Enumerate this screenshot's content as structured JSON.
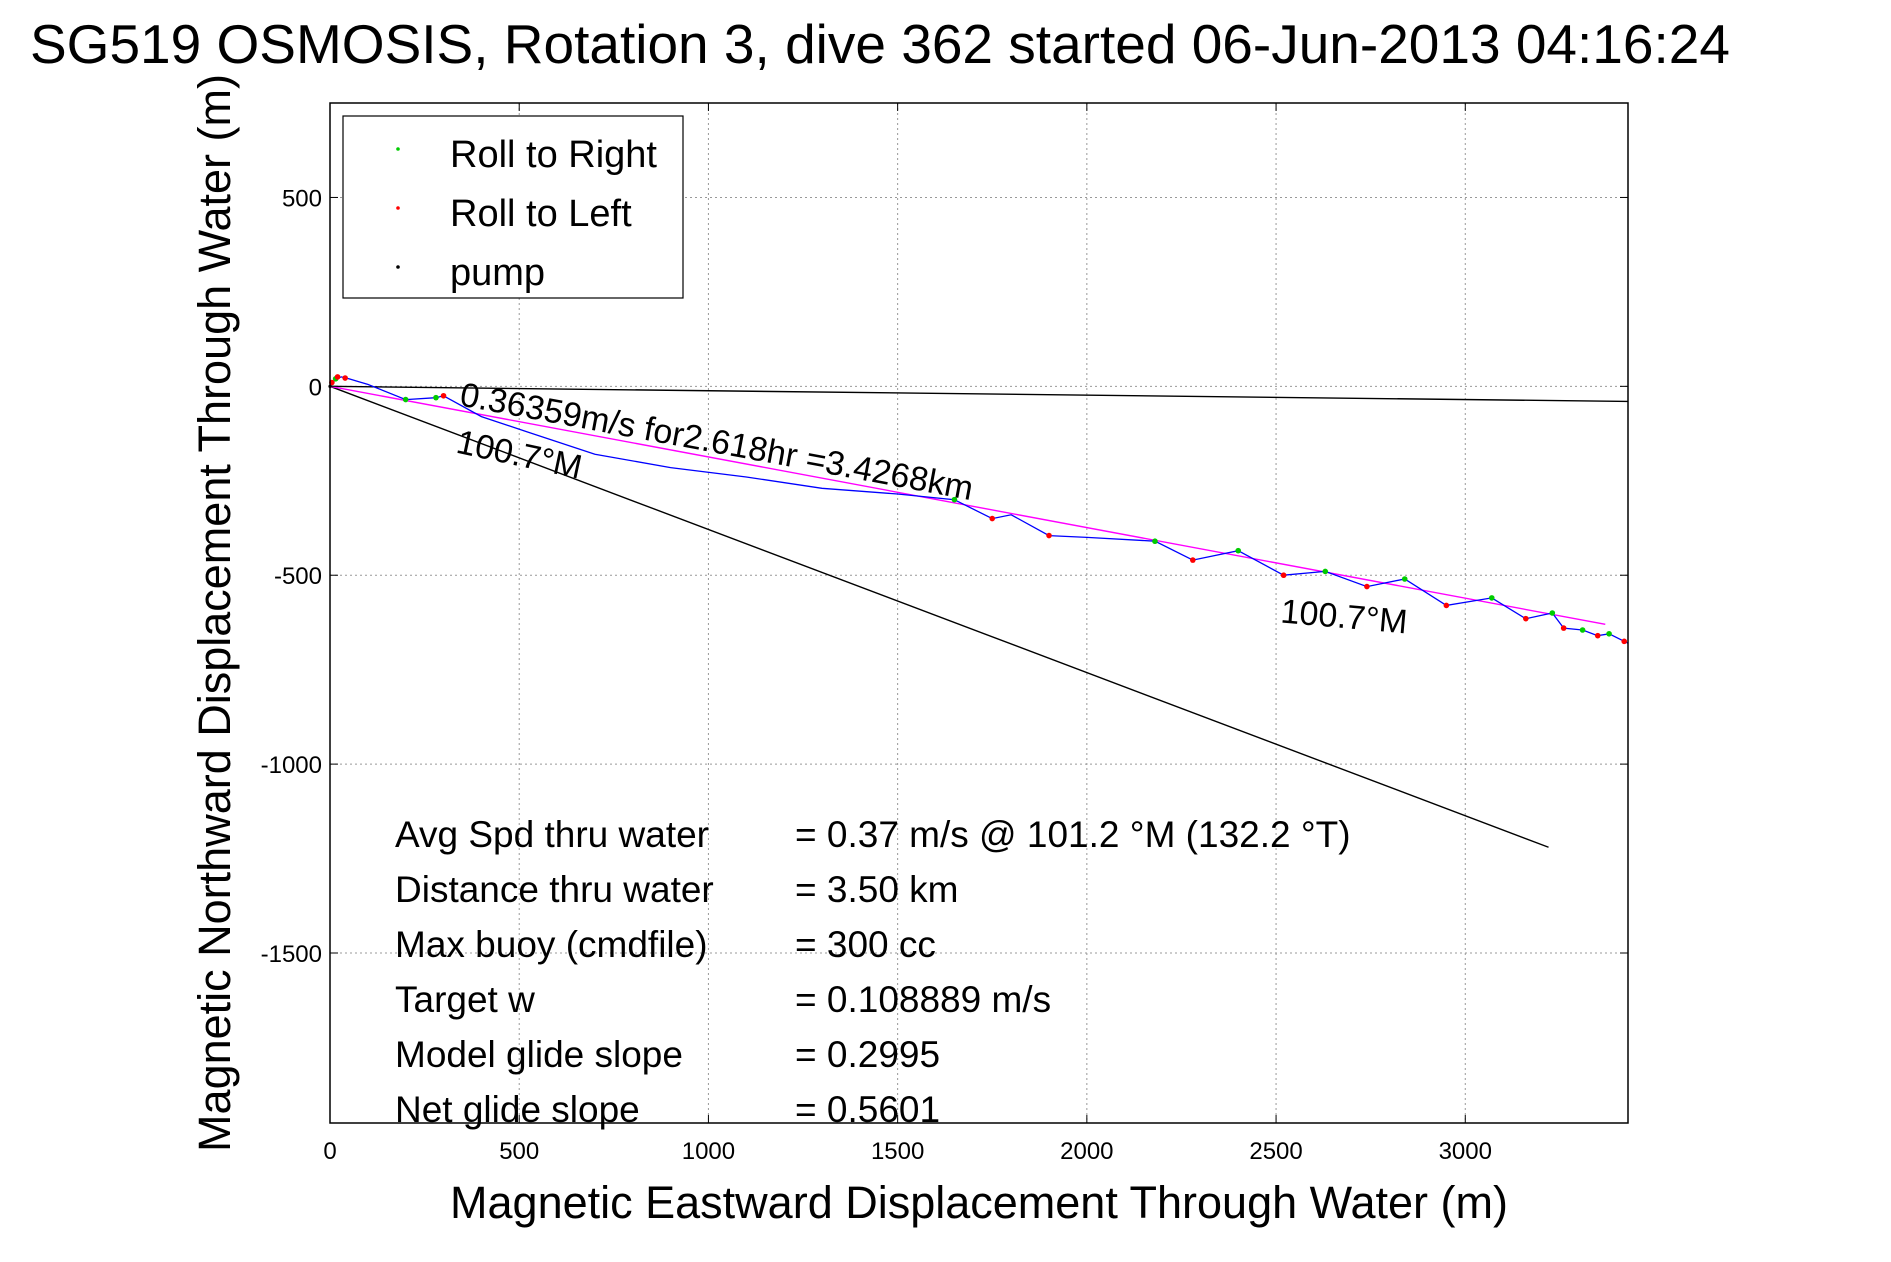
{
  "chart_data": {
    "type": "scatter",
    "title": "SG519 OSMOSIS, Rotation 3, dive 362 started 06-Jun-2013 04:16:24",
    "xlabel": "Magnetic Eastward Displacement Through Water (m)",
    "ylabel": "Magnetic Northward Displacement Through Water (m)",
    "xlim": [
      0,
      3430
    ],
    "ylim": [
      -1950,
      750
    ],
    "x_ticks": [
      0,
      500,
      1000,
      1500,
      2000,
      2500,
      3000
    ],
    "y_ticks": [
      500,
      0,
      -500,
      -1000,
      -1500
    ],
    "grid": true,
    "legend_position": "top-left",
    "legend": [
      {
        "label": "Roll to Right",
        "color": "#00cc00"
      },
      {
        "label": "Roll to Left",
        "color": "#ff0000"
      },
      {
        "label": "pump",
        "color": "#000000"
      }
    ],
    "track": {
      "color": "#0000ff",
      "points": [
        [
          0,
          0
        ],
        [
          15,
          20
        ],
        [
          30,
          25
        ],
        [
          50,
          20
        ],
        [
          100,
          5
        ],
        [
          200,
          -35
        ],
        [
          280,
          -30
        ],
        [
          300,
          -25
        ],
        [
          400,
          -80
        ],
        [
          520,
          -120
        ],
        [
          700,
          -180
        ],
        [
          900,
          -215
        ],
        [
          1100,
          -240
        ],
        [
          1300,
          -270
        ],
        [
          1500,
          -285
        ],
        [
          1650,
          -300
        ],
        [
          1750,
          -350
        ],
        [
          1800,
          -340
        ],
        [
          1900,
          -395
        ],
        [
          2000,
          -400
        ],
        [
          2180,
          -410
        ],
        [
          2280,
          -460
        ],
        [
          2400,
          -435
        ],
        [
          2520,
          -500
        ],
        [
          2630,
          -490
        ],
        [
          2740,
          -530
        ],
        [
          2840,
          -510
        ],
        [
          2950,
          -580
        ],
        [
          3070,
          -560
        ],
        [
          3160,
          -615
        ],
        [
          3230,
          -600
        ],
        [
          3260,
          -640
        ],
        [
          3310,
          -645
        ],
        [
          3350,
          -660
        ],
        [
          3380,
          -655
        ],
        [
          3420,
          -675
        ],
        [
          3430,
          -680
        ]
      ]
    },
    "roll_right_points": [
      [
        15,
        20
      ],
      [
        200,
        -35
      ],
      [
        280,
        -30
      ],
      [
        1650,
        -300
      ],
      [
        2180,
        -410
      ],
      [
        2400,
        -435
      ],
      [
        2630,
        -490
      ],
      [
        2840,
        -510
      ],
      [
        3070,
        -560
      ],
      [
        3230,
        -600
      ],
      [
        3310,
        -645
      ],
      [
        3380,
        -655
      ]
    ],
    "roll_left_points": [
      [
        5,
        10
      ],
      [
        20,
        25
      ],
      [
        40,
        22
      ],
      [
        300,
        -25
      ],
      [
        1750,
        -350
      ],
      [
        1900,
        -395
      ],
      [
        2280,
        -460
      ],
      [
        2520,
        -500
      ],
      [
        2740,
        -530
      ],
      [
        2950,
        -580
      ],
      [
        3160,
        -615
      ],
      [
        3260,
        -640
      ],
      [
        3350,
        -660
      ],
      [
        3420,
        -675
      ]
    ],
    "pump_points": [
      [
        0,
        0
      ]
    ],
    "trend_line": {
      "color": "#ff00ff",
      "from": [
        0,
        0
      ],
      "to": [
        3370,
        -630
      ]
    },
    "current_line": {
      "color": "#000000",
      "from": [
        0,
        0
      ],
      "to": [
        3430,
        -40
      ]
    },
    "heading_line": {
      "color": "#000000",
      "from": [
        0,
        0
      ],
      "to": [
        3220,
        -1220
      ]
    },
    "annotations": [
      {
        "text": "0.36359m/s for2.618hr =3.4268km",
        "x": 340,
        "y": -50,
        "rotate": 10.5
      },
      {
        "text": "100.7°M",
        "x": 330,
        "y": -175,
        "rotate": 12
      },
      {
        "text": "100.7°M",
        "x": 2510,
        "y": -625,
        "rotate": 5
      }
    ],
    "stats": [
      {
        "label": "Avg Spd thru water",
        "value": "=  0.37 m/s @ 101.2 °M (132.2 °T)"
      },
      {
        "label": "Distance thru water",
        "value": "=  3.50 km"
      },
      {
        "label": "Max buoy (cmdfile)",
        "value": "= 300 cc"
      },
      {
        "label": "Target w",
        "value": "= 0.108889 m/s"
      },
      {
        "label": "Model glide slope",
        "value": "= 0.2995"
      },
      {
        "label": "Net glide slope",
        "value": "= 0.5601"
      }
    ]
  }
}
